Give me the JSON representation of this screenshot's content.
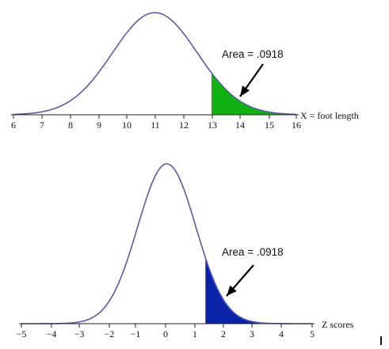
{
  "chart_data": [
    {
      "type": "area",
      "distribution": "normal",
      "mean": 11,
      "sd": 1.5,
      "xlim": [
        6,
        16
      ],
      "ticks": [
        "6",
        "7",
        "8",
        "9",
        "10",
        "11",
        "12",
        "13",
        "14",
        "15",
        "16"
      ],
      "xlabel": "X = foot length",
      "shaded_from": 13,
      "shaded_to": 16,
      "annotation": "Area = .0918",
      "colors": {
        "curve": "#5a5aa8",
        "fill": "#11b211",
        "axis": "#222222"
      }
    },
    {
      "type": "area",
      "distribution": "normal",
      "mean": 0,
      "sd": 1,
      "xlim": [
        -5,
        5
      ],
      "ticks": [
        "−5",
        "−4",
        "−3",
        "−2",
        "−1",
        "0",
        "1",
        "2",
        "3",
        "4",
        "5"
      ],
      "xlabel": "Z scores",
      "shaded_from": 1.33,
      "shaded_to": 5,
      "annotation": "Area = .0918",
      "colors": {
        "curve": "#5a5aa8",
        "fill": "#0a22a8",
        "axis": "#222222"
      }
    }
  ]
}
